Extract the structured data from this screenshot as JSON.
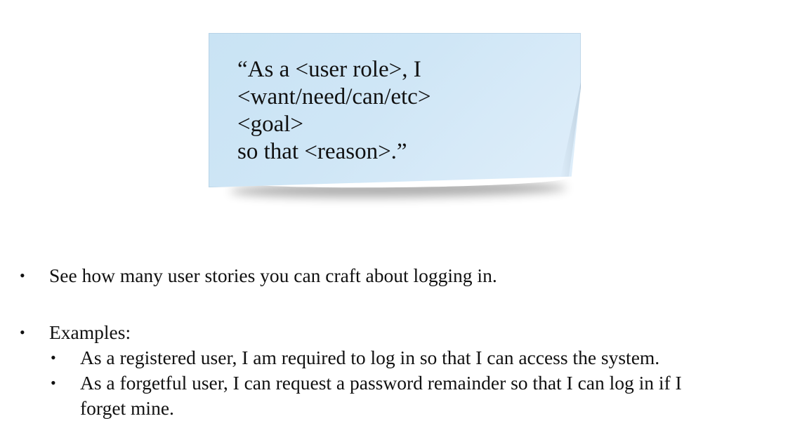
{
  "sticky_note": {
    "lines": [
      "“As a <user role>, I",
      "<want/need/can/etc>",
      "<goal>",
      "so that <reason>.”"
    ],
    "color": "#cde5f5"
  },
  "bullets": {
    "item1": "See how many user stories you can craft about logging in.",
    "item2": "Examples:",
    "sub1": "As a registered user, I am required to log in so that I can access the system.",
    "sub2_line1": "As a forgetful user, I can request a password remainder so that I can log in if I",
    "sub2_line2": "forget mine.",
    "bullet_glyph": "•"
  }
}
